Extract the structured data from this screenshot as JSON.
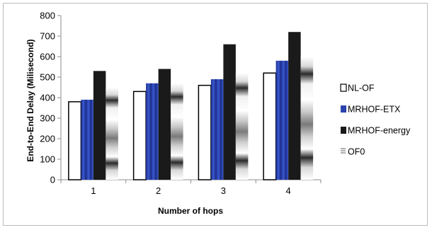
{
  "chart_data": {
    "type": "bar",
    "title": "",
    "xlabel": "Number of hops",
    "ylabel": "End-to-End Delay (Milisecond)",
    "categories": [
      "1",
      "2",
      "3",
      "4"
    ],
    "ylim": [
      0,
      800
    ],
    "yticks": [
      "0",
      "100",
      "200",
      "300",
      "400",
      "500",
      "600",
      "700",
      "800"
    ],
    "grid": false,
    "legend_position": "right",
    "series": [
      {
        "name": "NL-OF",
        "values": [
          380,
          430,
          460,
          520
        ],
        "style": "outline",
        "color": "#000000"
      },
      {
        "name": "MRHOF-ETX",
        "values": [
          390,
          470,
          490,
          580
        ],
        "style": "blue-gradient",
        "color": "#2a45b8"
      },
      {
        "name": "MRHOF-energy",
        "values": [
          530,
          540,
          660,
          720
        ],
        "style": "solid",
        "color": "#1a1a1a"
      },
      {
        "name": "OF0",
        "values": [
          450,
          470,
          520,
          600
        ],
        "style": "gray-gradient",
        "color": "#a0a0a0"
      }
    ]
  }
}
